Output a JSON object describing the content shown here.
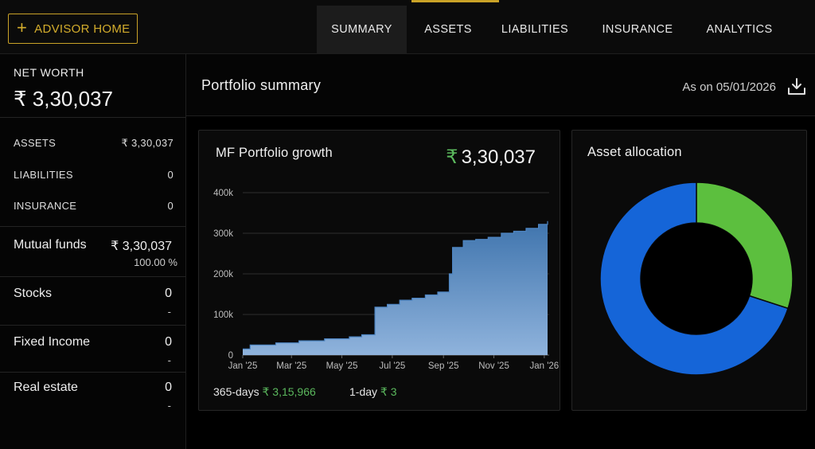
{
  "topbar": {
    "advisor_label": "ADVISOR HOME",
    "tabs": [
      {
        "label": "SUMMARY",
        "active": true
      },
      {
        "label": "ASSETS",
        "active": false
      },
      {
        "label": "LIABILITIES",
        "active": false
      },
      {
        "label": "INSURANCE",
        "active": false
      },
      {
        "label": "ANALYTICS",
        "active": false
      }
    ],
    "accent_color": "#c9a227"
  },
  "sidebar": {
    "net_worth_label": "NET WORTH",
    "net_worth_value": "₹ 3,30,037",
    "rows": [
      {
        "label": "ASSETS",
        "value": "₹ 3,30,037"
      },
      {
        "label": "LIABILITIES",
        "value": "0"
      },
      {
        "label": "INSURANCE",
        "value": "0"
      }
    ],
    "categories": [
      {
        "label": "Mutual funds",
        "value": "₹ 3,30,037",
        "sub": "100.00 %"
      },
      {
        "label": "Stocks",
        "value": "0",
        "sub": "-"
      },
      {
        "label": "Fixed Income",
        "value": "0",
        "sub": "-"
      },
      {
        "label": "Real estate",
        "value": "0",
        "sub": "-"
      }
    ]
  },
  "main": {
    "title": "Portfolio summary",
    "as_on": "As on 05/01/2026"
  },
  "growth_card": {
    "title": "MF Portfolio growth",
    "value_symbol": "₹",
    "value": "3,30,037",
    "days365_label": "365-days",
    "days365_value": "₹ 3,15,966",
    "day1_label": "1-day",
    "day1_value": "₹ 3"
  },
  "allocation_card": {
    "title": "Asset allocation"
  },
  "chart_data": [
    {
      "type": "area",
      "title": "MF Portfolio growth",
      "x_ticks": [
        "Jan '25",
        "Mar '25",
        "May '25",
        "Jul '25",
        "Sep '25",
        "Nov '25",
        "Jan '26"
      ],
      "y_ticks": [
        "0",
        "100k",
        "200k",
        "300k",
        "400k"
      ],
      "ylim": [
        0,
        400000
      ],
      "xlim": [
        "2025-01-01",
        "2026-01-05"
      ],
      "grid": true,
      "color": "#4a7fb8",
      "x": [
        "2025-01-01",
        "2025-01-10",
        "2025-02-10",
        "2025-03-10",
        "2025-04-10",
        "2025-05-10",
        "2025-05-25",
        "2025-06-10",
        "2025-06-25",
        "2025-07-10",
        "2025-07-25",
        "2025-08-10",
        "2025-08-25",
        "2025-09-08",
        "2025-09-12",
        "2025-09-25",
        "2025-10-10",
        "2025-10-25",
        "2025-11-10",
        "2025-11-25",
        "2025-12-10",
        "2025-12-25",
        "2026-01-05"
      ],
      "y": [
        15000,
        25000,
        30000,
        35000,
        40000,
        45000,
        50000,
        118000,
        125000,
        135000,
        140000,
        148000,
        155000,
        200000,
        265000,
        282000,
        285000,
        290000,
        300000,
        305000,
        312000,
        322000,
        330037
      ]
    },
    {
      "type": "pie",
      "title": "Asset allocation",
      "donut": true,
      "legend": "none",
      "slices": [
        {
          "value": 30,
          "color": "#5cbf3e"
        },
        {
          "value": 70,
          "color": "#1565d8"
        }
      ]
    }
  ]
}
